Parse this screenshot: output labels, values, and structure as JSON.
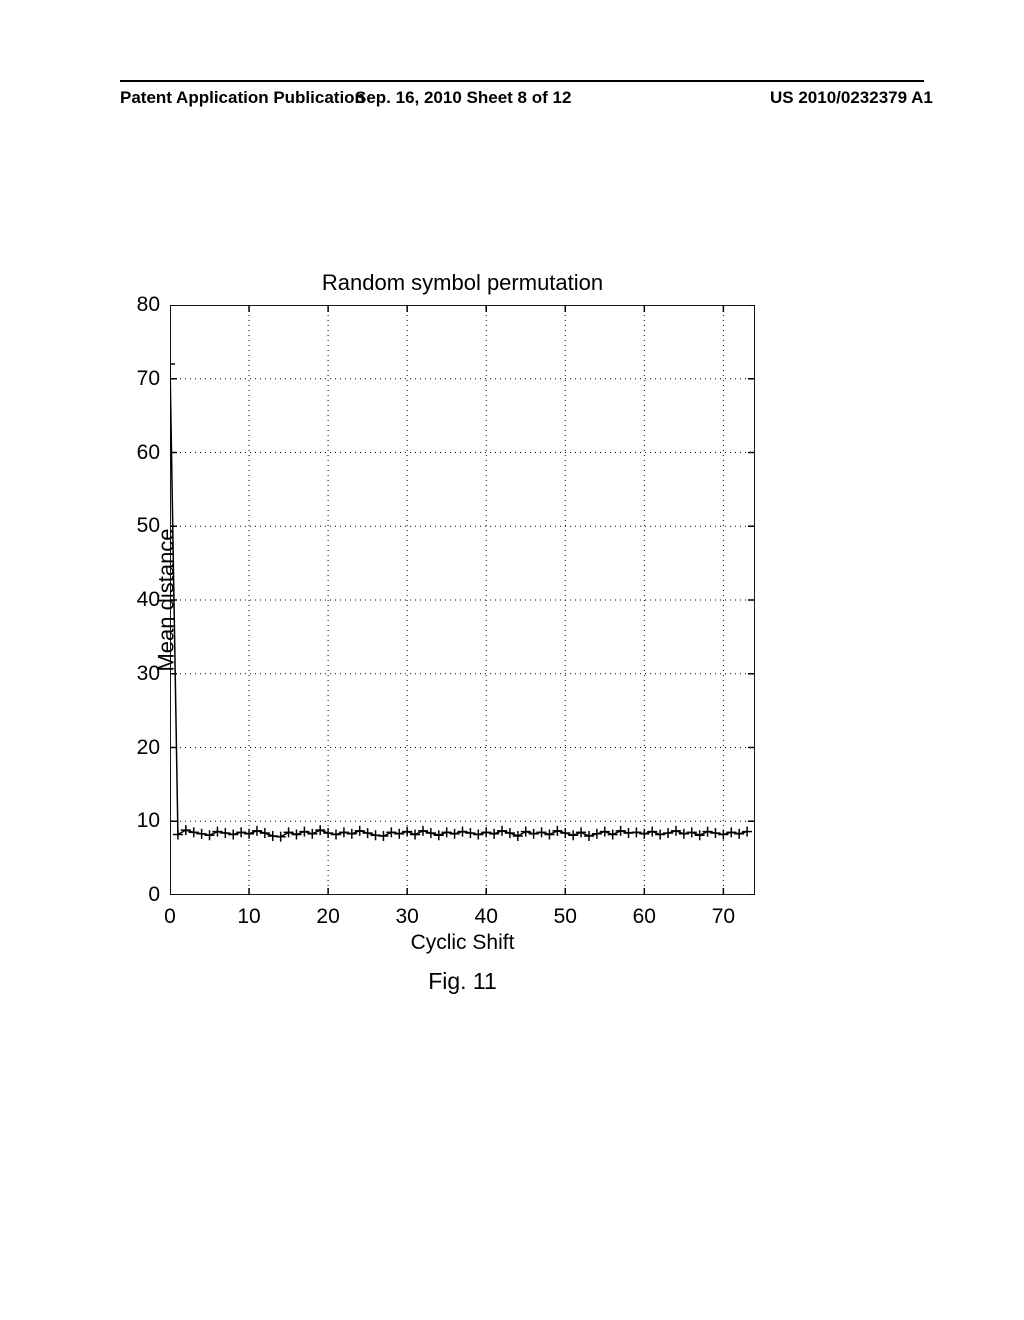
{
  "header": {
    "left_text": "Patent Application Publication",
    "center_text": "Sep. 16, 2010  Sheet 8 of 12",
    "right_text": "US 2010/0232379 A1"
  },
  "chart": {
    "type": "line_with_markers",
    "title": "Random symbol permutation",
    "ylabel": "Mean distance",
    "xlabel": "Cyclic Shift",
    "figure_label": "Fig. 11",
    "xlim": [
      0,
      74
    ],
    "ylim": [
      0,
      80
    ],
    "xticks": [
      0,
      10,
      20,
      30,
      40,
      50,
      60,
      70
    ],
    "yticks": [
      0,
      10,
      20,
      30,
      40,
      50,
      60,
      70,
      80
    ],
    "xgrid_positions": [
      10,
      20,
      30,
      40,
      50,
      60,
      70
    ],
    "ygrid_positions": [
      10,
      20,
      30,
      40,
      50,
      60,
      70
    ],
    "grid_color": "#000000",
    "grid_dash": "1,4",
    "axis_color": "#000000",
    "line_color": "#000000",
    "marker_style": "plus",
    "marker_color": "#000000",
    "marker_size": 5,
    "line_width": 1.5,
    "background_color": "#ffffff",
    "tick_fontsize": 21,
    "title_fontsize": 22,
    "label_fontsize": 22,
    "data": {
      "x": [
        0,
        1,
        2,
        3,
        4,
        5,
        6,
        7,
        8,
        9,
        10,
        11,
        12,
        13,
        14,
        15,
        16,
        17,
        18,
        19,
        20,
        21,
        22,
        23,
        24,
        25,
        26,
        27,
        28,
        29,
        30,
        31,
        32,
        33,
        34,
        35,
        36,
        37,
        38,
        39,
        40,
        41,
        42,
        43,
        44,
        45,
        46,
        47,
        48,
        49,
        50,
        51,
        52,
        53,
        54,
        55,
        56,
        57,
        58,
        59,
        60,
        61,
        62,
        63,
        64,
        65,
        66,
        67,
        68,
        69,
        70,
        71,
        72,
        73
      ],
      "y": [
        72,
        8.2,
        8.8,
        8.5,
        8.3,
        8.1,
        8.6,
        8.4,
        8.2,
        8.5,
        8.3,
        8.7,
        8.4,
        8.0,
        7.9,
        8.5,
        8.2,
        8.6,
        8.3,
        8.8,
        8.4,
        8.2,
        8.5,
        8.3,
        8.7,
        8.4,
        8.1,
        8.0,
        8.5,
        8.3,
        8.6,
        8.2,
        8.7,
        8.4,
        8.1,
        8.5,
        8.3,
        8.6,
        8.4,
        8.2,
        8.5,
        8.3,
        8.7,
        8.4,
        8.0,
        8.6,
        8.3,
        8.5,
        8.2,
        8.7,
        8.4,
        8.1,
        8.5,
        8.0,
        8.3,
        8.6,
        8.2,
        8.7,
        8.4,
        8.5,
        8.3,
        8.6,
        8.2,
        8.4,
        8.7,
        8.3,
        8.5,
        8.1,
        8.6,
        8.4,
        8.2,
        8.5,
        8.3,
        8.6
      ]
    }
  }
}
